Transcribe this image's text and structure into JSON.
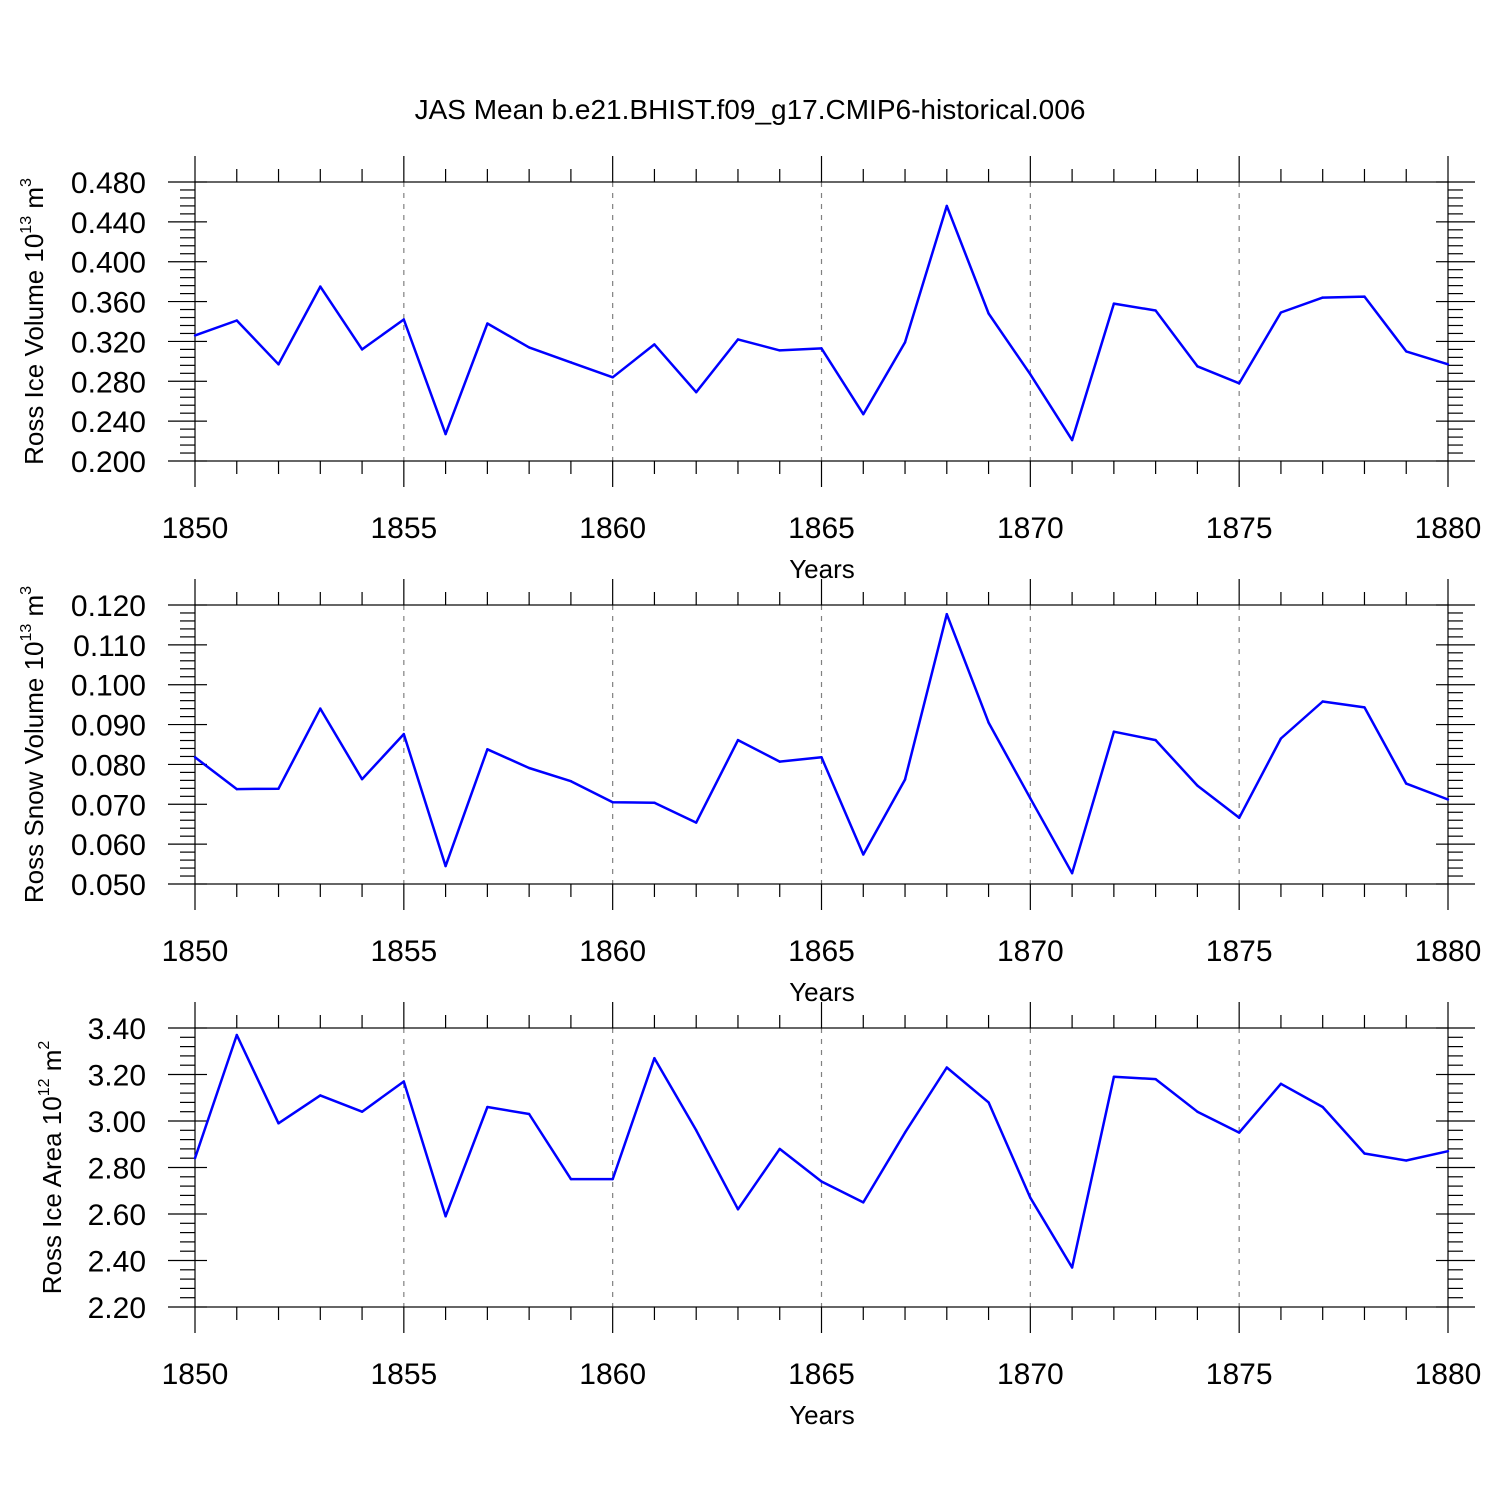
{
  "title": "JAS Mean b.e21.BHIST.f09_g17.CMIP6-historical.006",
  "line_color": "#0000ff",
  "chart_data": [
    {
      "type": "line",
      "ylabel": "Ross Ice Volume 10",
      "ylabel_exp": "13",
      "ylabel_unit": " m",
      "ylabel_unit_exp": "3",
      "xlabel": "Years",
      "xlim": [
        1850,
        1880
      ],
      "ylim": [
        0.2,
        0.48
      ],
      "xticks": [
        "1850",
        "1855",
        "1860",
        "1865",
        "1870",
        "1875",
        "1880"
      ],
      "yticks": [
        "0.200",
        "0.240",
        "0.280",
        "0.320",
        "0.360",
        "0.400",
        "0.440",
        "0.480"
      ],
      "grid": "dashed vertical at major x ticks",
      "x": [
        1850,
        1851,
        1852,
        1853,
        1854,
        1855,
        1856,
        1857,
        1858,
        1859,
        1860,
        1861,
        1862,
        1863,
        1864,
        1865,
        1866,
        1867,
        1868,
        1869,
        1870,
        1871,
        1872,
        1873,
        1874,
        1875,
        1876,
        1877,
        1878,
        1879,
        1880
      ],
      "values": [
        0.326,
        0.341,
        0.297,
        0.375,
        0.312,
        0.342,
        0.227,
        0.338,
        0.314,
        0.299,
        0.284,
        0.317,
        0.269,
        0.322,
        0.311,
        0.313,
        0.247,
        0.319,
        0.456,
        0.348,
        0.287,
        0.221,
        0.358,
        0.351,
        0.295,
        0.278,
        0.349,
        0.364,
        0.365,
        0.31,
        0.297
      ]
    },
    {
      "type": "line",
      "ylabel": "Ross Snow Volume 10",
      "ylabel_exp": "13",
      "ylabel_unit": " m",
      "ylabel_unit_exp": "3",
      "xlabel": "Years",
      "xlim": [
        1850,
        1880
      ],
      "ylim": [
        0.05,
        0.12
      ],
      "xticks": [
        "1850",
        "1855",
        "1860",
        "1865",
        "1870",
        "1875",
        "1880"
      ],
      "yticks": [
        "0.050",
        "0.060",
        "0.070",
        "0.080",
        "0.090",
        "0.100",
        "0.110",
        "0.120"
      ],
      "grid": "dashed vertical at major x ticks",
      "x": [
        1850,
        1851,
        1852,
        1853,
        1854,
        1855,
        1856,
        1857,
        1858,
        1859,
        1860,
        1861,
        1862,
        1863,
        1864,
        1865,
        1866,
        1867,
        1868,
        1869,
        1870,
        1871,
        1872,
        1873,
        1874,
        1875,
        1876,
        1877,
        1878,
        1879,
        1880
      ],
      "values": [
        0.0818,
        0.0738,
        0.0739,
        0.094,
        0.0763,
        0.0876,
        0.0545,
        0.0838,
        0.0791,
        0.0758,
        0.0705,
        0.0704,
        0.0654,
        0.0861,
        0.0807,
        0.0818,
        0.0574,
        0.0762,
        0.1177,
        0.0905,
        0.0715,
        0.0527,
        0.0882,
        0.0861,
        0.0747,
        0.0666,
        0.0865,
        0.0958,
        0.0943,
        0.0752,
        0.0712
      ]
    },
    {
      "type": "line",
      "ylabel": "Ross Ice Area 10",
      "ylabel_exp": "12",
      "ylabel_unit": " m",
      "ylabel_unit_exp": "2",
      "xlabel": "Years",
      "xlim": [
        1850,
        1880
      ],
      "ylim": [
        2.2,
        3.4
      ],
      "xticks": [
        "1850",
        "1855",
        "1860",
        "1865",
        "1870",
        "1875",
        "1880"
      ],
      "yticks": [
        "2.20",
        "2.40",
        "2.60",
        "2.80",
        "3.00",
        "3.20",
        "3.40"
      ],
      "grid": "dashed vertical at major x ticks",
      "x": [
        1850,
        1851,
        1852,
        1853,
        1854,
        1855,
        1856,
        1857,
        1858,
        1859,
        1860,
        1861,
        1862,
        1863,
        1864,
        1865,
        1866,
        1867,
        1868,
        1869,
        1870,
        1871,
        1872,
        1873,
        1874,
        1875,
        1876,
        1877,
        1878,
        1879,
        1880
      ],
      "values": [
        2.84,
        3.37,
        2.99,
        3.11,
        3.04,
        3.17,
        2.59,
        3.06,
        3.03,
        2.75,
        2.75,
        3.27,
        2.96,
        2.62,
        2.88,
        2.74,
        2.65,
        2.95,
        3.23,
        3.08,
        2.67,
        2.37,
        3.19,
        3.18,
        3.04,
        2.95,
        3.16,
        3.06,
        2.86,
        2.83,
        2.87
      ]
    }
  ]
}
